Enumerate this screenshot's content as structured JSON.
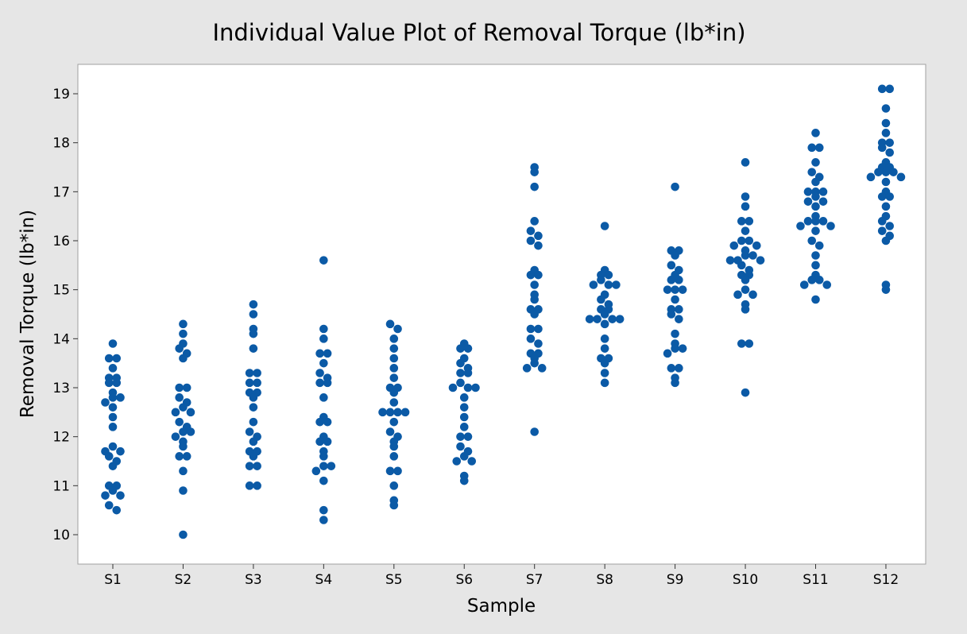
{
  "chart_data": {
    "type": "scatter",
    "title": "Individual Value Plot of Removal Torque (lb*in)",
    "xlabel": "Sample",
    "ylabel": "Removal Torque (lb*in)",
    "ylim": [
      9.4,
      19.6
    ],
    "yticks": [
      10,
      11,
      12,
      13,
      14,
      15,
      16,
      17,
      18,
      19
    ],
    "categories": [
      "S1",
      "S2",
      "S3",
      "S4",
      "S5",
      "S6",
      "S7",
      "S8",
      "S9",
      "S10",
      "S11",
      "S12"
    ],
    "grid": false,
    "legend": "none",
    "marker_color": "#0b5aa6",
    "series": [
      {
        "category": "S1",
        "values": [
          13.9,
          13.6,
          13.6,
          13.4,
          13.2,
          13.2,
          13.1,
          13.1,
          12.9,
          12.8,
          12.8,
          12.7,
          12.6,
          12.4,
          12.2,
          11.8,
          11.7,
          11.7,
          11.6,
          11.5,
          11.4,
          11.0,
          11.0,
          10.9,
          10.8,
          10.8,
          10.6,
          10.5
        ]
      },
      {
        "category": "S2",
        "values": [
          14.3,
          14.1,
          13.9,
          13.8,
          13.7,
          13.6,
          13.0,
          13.0,
          12.8,
          12.7,
          12.6,
          12.5,
          12.5,
          12.3,
          12.2,
          12.1,
          12.1,
          12.0,
          11.9,
          11.8,
          11.6,
          11.6,
          11.3,
          10.9,
          10.0
        ]
      },
      {
        "category": "S3",
        "values": [
          14.7,
          14.5,
          14.2,
          14.1,
          13.8,
          13.3,
          13.3,
          13.1,
          13.1,
          12.9,
          12.9,
          12.8,
          12.6,
          12.3,
          12.1,
          12.0,
          11.9,
          11.7,
          11.7,
          11.6,
          11.4,
          11.4,
          11.0,
          11.0
        ]
      },
      {
        "category": "S4",
        "values": [
          15.6,
          14.2,
          14.0,
          13.7,
          13.7,
          13.5,
          13.3,
          13.2,
          13.1,
          13.1,
          12.8,
          12.4,
          12.3,
          12.3,
          12.0,
          11.9,
          11.9,
          11.7,
          11.6,
          11.4,
          11.4,
          11.3,
          11.1,
          10.5,
          10.3
        ]
      },
      {
        "category": "S5",
        "values": [
          14.3,
          14.2,
          14.0,
          13.8,
          13.6,
          13.4,
          13.2,
          13.0,
          13.0,
          12.9,
          12.7,
          12.5,
          12.5,
          12.5,
          12.5,
          12.3,
          12.1,
          12.0,
          11.9,
          11.8,
          11.6,
          11.3,
          11.3,
          11.0,
          10.7,
          10.6
        ]
      },
      {
        "category": "S6",
        "values": [
          13.9,
          13.8,
          13.8,
          13.6,
          13.5,
          13.4,
          13.3,
          13.3,
          13.1,
          13.0,
          13.0,
          13.0,
          12.8,
          12.6,
          12.4,
          12.2,
          12.0,
          12.0,
          11.8,
          11.7,
          11.6,
          11.5,
          11.5,
          11.2,
          11.1
        ]
      },
      {
        "category": "S7",
        "values": [
          17.5,
          17.4,
          17.1,
          16.4,
          16.2,
          16.1,
          16.0,
          15.9,
          15.4,
          15.3,
          15.3,
          15.1,
          14.9,
          14.8,
          14.6,
          14.6,
          14.5,
          14.2,
          14.2,
          14.0,
          13.9,
          13.7,
          13.7,
          13.6,
          13.5,
          13.4,
          13.4,
          12.1
        ]
      },
      {
        "category": "S8",
        "values": [
          16.3,
          15.4,
          15.3,
          15.3,
          15.2,
          15.1,
          15.1,
          15.1,
          14.9,
          14.8,
          14.7,
          14.6,
          14.6,
          14.5,
          14.4,
          14.4,
          14.4,
          14.4,
          14.3,
          14.0,
          13.8,
          13.6,
          13.6,
          13.5,
          13.3,
          13.1
        ]
      },
      {
        "category": "S9",
        "values": [
          17.1,
          15.8,
          15.8,
          15.7,
          15.5,
          15.4,
          15.3,
          15.2,
          15.2,
          15.0,
          15.0,
          15.0,
          14.8,
          14.6,
          14.6,
          14.5,
          14.4,
          14.1,
          13.9,
          13.8,
          13.8,
          13.7,
          13.4,
          13.4,
          13.2,
          13.1
        ]
      },
      {
        "category": "S10",
        "values": [
          17.6,
          16.9,
          16.7,
          16.4,
          16.4,
          16.2,
          16.0,
          16.0,
          15.9,
          15.9,
          15.8,
          15.7,
          15.7,
          15.6,
          15.6,
          15.6,
          15.5,
          15.4,
          15.3,
          15.3,
          15.2,
          15.0,
          14.9,
          14.9,
          14.7,
          14.6,
          13.9,
          13.9,
          12.9
        ]
      },
      {
        "category": "S11",
        "values": [
          18.2,
          17.9,
          17.9,
          17.6,
          17.4,
          17.3,
          17.2,
          17.0,
          17.0,
          17.0,
          16.9,
          16.8,
          16.8,
          16.7,
          16.5,
          16.4,
          16.4,
          16.4,
          16.3,
          16.3,
          16.2,
          16.0,
          15.9,
          15.7,
          15.5,
          15.3,
          15.2,
          15.2,
          15.1,
          15.1,
          14.8
        ]
      },
      {
        "category": "S12",
        "values": [
          19.1,
          19.1,
          18.7,
          18.4,
          18.2,
          18.0,
          18.0,
          17.9,
          17.8,
          17.6,
          17.5,
          17.5,
          17.4,
          17.4,
          17.4,
          17.3,
          17.3,
          17.2,
          17.0,
          16.9,
          16.9,
          16.7,
          16.5,
          16.4,
          16.3,
          16.2,
          16.1,
          16.0,
          15.1,
          15.0
        ]
      }
    ]
  }
}
